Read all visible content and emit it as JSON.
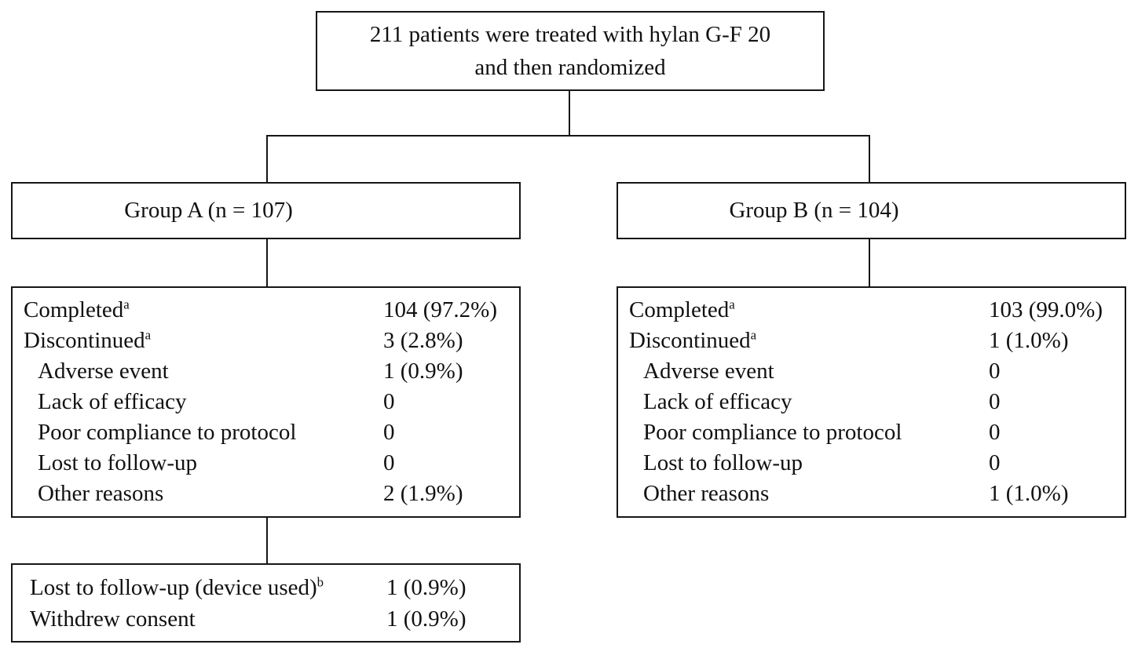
{
  "top_box": {
    "line1": "211 patients were treated with hylan G-F 20",
    "line2": "and then randomized"
  },
  "group_a": {
    "header": "Group A (n = 107)",
    "rows": [
      {
        "label": "Completed",
        "sup": "a",
        "value": "104 (97.2%)"
      },
      {
        "label": "Discontinued",
        "sup": "a",
        "value": "3 (2.8%)"
      },
      {
        "label": "Adverse event",
        "sup": "",
        "value": "1 (0.9%)"
      },
      {
        "label": "Lack of efficacy",
        "sup": "",
        "value": "0"
      },
      {
        "label": "Poor compliance to protocol",
        "sup": "",
        "value": "0"
      },
      {
        "label": "Lost to follow-up",
        "sup": "",
        "value": "0"
      },
      {
        "label": "Other reasons",
        "sup": "",
        "value": "2 (1.9%)"
      }
    ]
  },
  "group_b": {
    "header": "Group B (n = 104)",
    "rows": [
      {
        "label": "Completed",
        "sup": "a",
        "value": "103 (99.0%)"
      },
      {
        "label": "Discontinued",
        "sup": "a",
        "value": "1 (1.0%)"
      },
      {
        "label": "Adverse event",
        "sup": "",
        "value": "0"
      },
      {
        "label": "Lack of efficacy",
        "sup": "",
        "value": "0"
      },
      {
        "label": "Poor compliance to protocol",
        "sup": "",
        "value": "0"
      },
      {
        "label": "Lost to follow-up",
        "sup": "",
        "value": "0"
      },
      {
        "label": "Other reasons",
        "sup": "",
        "value": "1 (1.0%)"
      }
    ]
  },
  "group_a_sub_box": {
    "rows": [
      {
        "label": "Lost to follow-up (device used)",
        "sup": "b",
        "value": "1 (0.9%)"
      },
      {
        "label": "Withdrew consent",
        "sup": "",
        "value": "1 (0.9%)"
      }
    ]
  },
  "colors": {
    "line": "#161616",
    "background": "#ffffff",
    "text": "#111111"
  }
}
